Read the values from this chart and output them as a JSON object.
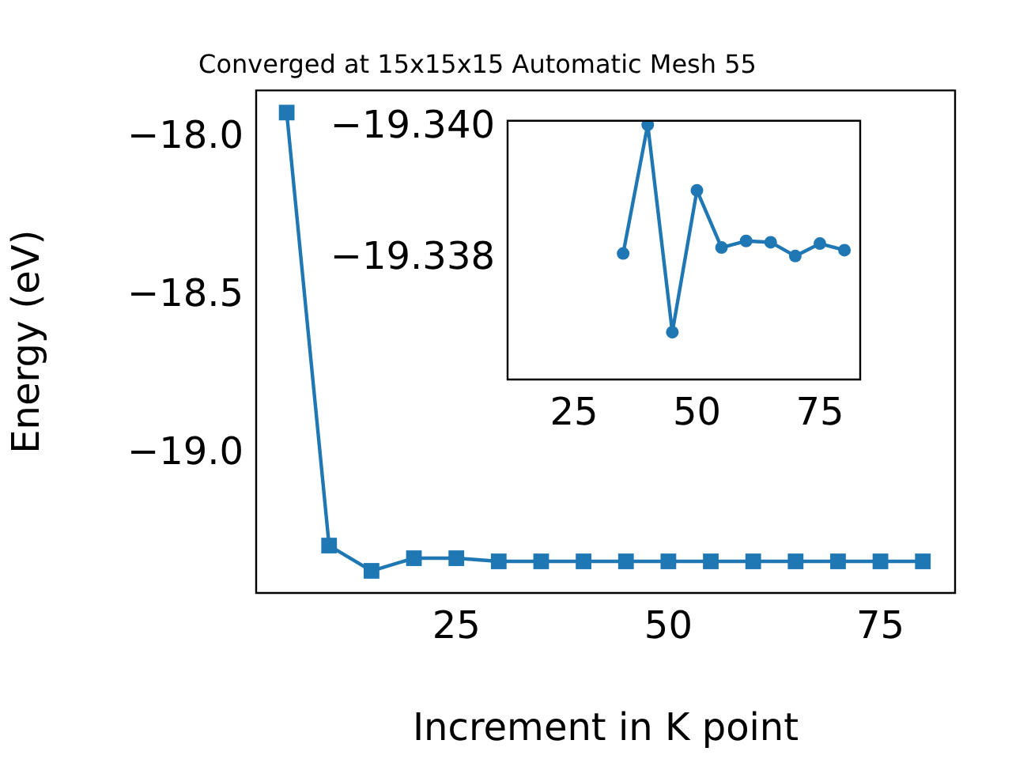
{
  "chart_data": [
    {
      "type": "line",
      "title": "Converged at 15x15x15 Automatic Mesh 55",
      "xlabel": "Increment in K point",
      "ylabel": "Energy (eV)",
      "x": [
        5,
        10,
        15,
        20,
        25,
        30,
        35,
        40,
        45,
        50,
        55,
        60,
        65,
        70,
        75,
        80
      ],
      "series": [
        {
          "color": "#1f77b4",
          "values": [
            -17.92,
            -19.29,
            -19.37,
            -19.33,
            -19.33,
            -19.34,
            -19.34,
            -19.34,
            -19.34,
            -19.34,
            -19.34,
            -19.34,
            -19.34,
            -19.34,
            -19.34,
            -19.34
          ]
        }
      ],
      "marker": "square",
      "xlim": [
        1.4,
        83.8
      ],
      "ylim": [
        -19.44,
        -17.85
      ],
      "xticks": [
        25,
        50,
        75
      ],
      "yticks": [
        {
          "value": -18,
          "label": "−18.0"
        },
        {
          "value": -18.5,
          "label": "−18.5"
        },
        {
          "value": -19,
          "label": "−19.0"
        }
      ]
    },
    {
      "type": "line",
      "x": [
        35,
        40,
        45,
        50,
        55,
        60,
        65,
        70,
        75,
        80
      ],
      "series": [
        {
          "color": "#1f77b4",
          "values": [
            -19.33808,
            -19.34004,
            -19.33688,
            -19.33904,
            -19.33817,
            -19.33827,
            -19.33825,
            -19.33804,
            -19.33823,
            -19.33813
          ]
        }
      ],
      "marker": "circle",
      "xlim": [
        11.5,
        83.2
      ],
      "ylim": [
        -19.33616,
        -19.3401
      ],
      "xticks": [
        25,
        50,
        75
      ],
      "yticks": [
        {
          "value": -19.34,
          "label": "−19.340"
        },
        {
          "value": -19.338,
          "label": "−19.338"
        }
      ]
    }
  ]
}
